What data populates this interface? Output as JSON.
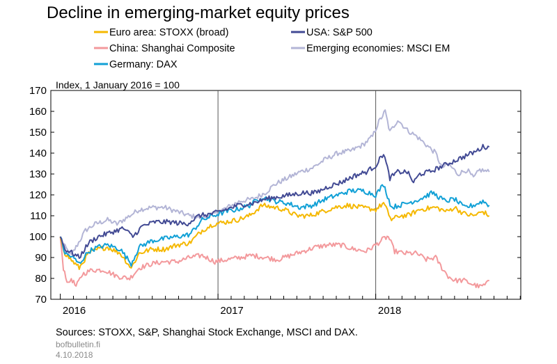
{
  "chart_data": {
    "type": "line",
    "title": "Decline in emerging-market equity prices",
    "subtitle": "Index, 1 January 2016 = 100",
    "xlabel": "",
    "ylabel": "",
    "ylim": [
      70,
      170
    ],
    "yticks": [
      "170",
      "160",
      "150",
      "140",
      "130",
      "120",
      "110",
      "100",
      "90",
      "80",
      "70"
    ],
    "xticks": [
      "2016",
      "2017",
      "2018"
    ],
    "grid": "vertical lines at year boundaries",
    "legend_placement": "top, two columns",
    "series": [
      {
        "name": "Euro area: STOXX (broad)",
        "color": "#f5b800",
        "points": [
          [
            2016.0,
            100
          ],
          [
            2016.03,
            92
          ],
          [
            2016.08,
            88
          ],
          [
            2016.12,
            85
          ],
          [
            2016.18,
            92
          ],
          [
            2016.24,
            94
          ],
          [
            2016.3,
            95
          ],
          [
            2016.38,
            92
          ],
          [
            2016.45,
            85
          ],
          [
            2016.5,
            92
          ],
          [
            2016.58,
            94
          ],
          [
            2016.66,
            94
          ],
          [
            2016.74,
            96
          ],
          [
            2016.82,
            97
          ],
          [
            2016.9,
            103
          ],
          [
            2016.97,
            106
          ],
          [
            2017.05,
            107
          ],
          [
            2017.12,
            108
          ],
          [
            2017.2,
            110
          ],
          [
            2017.28,
            115
          ],
          [
            2017.36,
            114
          ],
          [
            2017.42,
            113
          ],
          [
            2017.5,
            110
          ],
          [
            2017.58,
            110
          ],
          [
            2017.66,
            112
          ],
          [
            2017.74,
            114
          ],
          [
            2017.82,
            115
          ],
          [
            2017.9,
            114
          ],
          [
            2018.0,
            113
          ],
          [
            2018.05,
            116
          ],
          [
            2018.1,
            108
          ],
          [
            2018.15,
            110
          ],
          [
            2018.2,
            110
          ],
          [
            2018.28,
            113
          ],
          [
            2018.38,
            114
          ],
          [
            2018.45,
            112
          ],
          [
            2018.5,
            114
          ],
          [
            2018.56,
            111
          ],
          [
            2018.62,
            110
          ],
          [
            2018.68,
            112
          ],
          [
            2018.72,
            110
          ]
        ]
      },
      {
        "name": "China: Shanghai Composite",
        "color": "#f3999c",
        "points": [
          [
            2016.0,
            100
          ],
          [
            2016.02,
            85
          ],
          [
            2016.05,
            77
          ],
          [
            2016.07,
            80
          ],
          [
            2016.1,
            76
          ],
          [
            2016.14,
            82
          ],
          [
            2016.2,
            84
          ],
          [
            2016.28,
            84
          ],
          [
            2016.36,
            81
          ],
          [
            2016.44,
            80
          ],
          [
            2016.5,
            85
          ],
          [
            2016.58,
            87
          ],
          [
            2016.66,
            88
          ],
          [
            2016.74,
            88
          ],
          [
            2016.82,
            90
          ],
          [
            2016.9,
            91
          ],
          [
            2016.98,
            88
          ],
          [
            2017.06,
            89
          ],
          [
            2017.14,
            90
          ],
          [
            2017.22,
            91
          ],
          [
            2017.3,
            90
          ],
          [
            2017.38,
            89
          ],
          [
            2017.46,
            91
          ],
          [
            2017.54,
            93
          ],
          [
            2017.62,
            95
          ],
          [
            2017.7,
            96
          ],
          [
            2017.78,
            96
          ],
          [
            2017.86,
            94
          ],
          [
            2017.94,
            93
          ],
          [
            2018.0,
            96
          ],
          [
            2018.05,
            99
          ],
          [
            2018.08,
            100
          ],
          [
            2018.12,
            93
          ],
          [
            2018.18,
            92
          ],
          [
            2018.26,
            92
          ],
          [
            2018.32,
            89
          ],
          [
            2018.38,
            90
          ],
          [
            2018.42,
            85
          ],
          [
            2018.46,
            81
          ],
          [
            2018.5,
            79
          ],
          [
            2018.56,
            79
          ],
          [
            2018.62,
            77
          ],
          [
            2018.66,
            76
          ],
          [
            2018.7,
            77
          ],
          [
            2018.72,
            79
          ]
        ]
      },
      {
        "name": "Germany: DAX",
        "color": "#11a0d6",
        "points": [
          [
            2016.0,
            100
          ],
          [
            2016.03,
            92
          ],
          [
            2016.08,
            90
          ],
          [
            2016.12,
            87
          ],
          [
            2016.18,
            93
          ],
          [
            2016.24,
            95
          ],
          [
            2016.3,
            96
          ],
          [
            2016.38,
            94
          ],
          [
            2016.45,
            87
          ],
          [
            2016.5,
            95
          ],
          [
            2016.58,
            98
          ],
          [
            2016.66,
            99
          ],
          [
            2016.74,
            100
          ],
          [
            2016.82,
            101
          ],
          [
            2016.9,
            108
          ],
          [
            2016.97,
            110
          ],
          [
            2017.05,
            112
          ],
          [
            2017.12,
            113
          ],
          [
            2017.2,
            115
          ],
          [
            2017.28,
            119
          ],
          [
            2017.36,
            117
          ],
          [
            2017.44,
            116
          ],
          [
            2017.52,
            114
          ],
          [
            2017.6,
            115
          ],
          [
            2017.68,
            118
          ],
          [
            2017.76,
            120
          ],
          [
            2017.84,
            122
          ],
          [
            2017.92,
            122
          ],
          [
            2018.0,
            120
          ],
          [
            2018.05,
            125
          ],
          [
            2018.1,
            114
          ],
          [
            2018.15,
            115
          ],
          [
            2018.2,
            116
          ],
          [
            2018.28,
            118
          ],
          [
            2018.36,
            121
          ],
          [
            2018.44,
            117
          ],
          [
            2018.5,
            118
          ],
          [
            2018.56,
            114
          ],
          [
            2018.62,
            115
          ],
          [
            2018.68,
            117
          ],
          [
            2018.72,
            115
          ]
        ]
      },
      {
        "name": "USA: S&P 500",
        "color": "#424a94",
        "points": [
          [
            2016.0,
            100
          ],
          [
            2016.03,
            94
          ],
          [
            2016.08,
            92
          ],
          [
            2016.12,
            90
          ],
          [
            2016.18,
            97
          ],
          [
            2016.24,
            100
          ],
          [
            2016.32,
            102
          ],
          [
            2016.4,
            104
          ],
          [
            2016.46,
            100
          ],
          [
            2016.52,
            105
          ],
          [
            2016.6,
            107
          ],
          [
            2016.7,
            107
          ],
          [
            2016.8,
            106
          ],
          [
            2016.88,
            110
          ],
          [
            2016.97,
            111
          ],
          [
            2017.05,
            113
          ],
          [
            2017.13,
            115
          ],
          [
            2017.22,
            116
          ],
          [
            2017.3,
            118
          ],
          [
            2017.38,
            119
          ],
          [
            2017.46,
            120
          ],
          [
            2017.54,
            121
          ],
          [
            2017.62,
            121
          ],
          [
            2017.7,
            124
          ],
          [
            2017.78,
            126
          ],
          [
            2017.86,
            129
          ],
          [
            2017.94,
            131
          ],
          [
            2018.0,
            134
          ],
          [
            2018.05,
            140
          ],
          [
            2018.09,
            128
          ],
          [
            2018.14,
            131
          ],
          [
            2018.2,
            131
          ],
          [
            2018.24,
            126
          ],
          [
            2018.28,
            130
          ],
          [
            2018.34,
            131
          ],
          [
            2018.4,
            133
          ],
          [
            2018.46,
            135
          ],
          [
            2018.52,
            137
          ],
          [
            2018.58,
            139
          ],
          [
            2018.64,
            141
          ],
          [
            2018.68,
            143
          ],
          [
            2018.72,
            143
          ]
        ]
      },
      {
        "name": "Emerging economies: MSCI EM",
        "color": "#b3b5d6",
        "points": [
          [
            2016.0,
            100
          ],
          [
            2016.03,
            95
          ],
          [
            2016.07,
            91
          ],
          [
            2016.1,
            95
          ],
          [
            2016.16,
            103
          ],
          [
            2016.22,
            106
          ],
          [
            2016.3,
            108
          ],
          [
            2016.36,
            106
          ],
          [
            2016.44,
            110
          ],
          [
            2016.5,
            113
          ],
          [
            2016.58,
            114
          ],
          [
            2016.66,
            114
          ],
          [
            2016.74,
            112
          ],
          [
            2016.82,
            110
          ],
          [
            2016.9,
            109
          ],
          [
            2016.98,
            111
          ],
          [
            2017.06,
            114
          ],
          [
            2017.14,
            117
          ],
          [
            2017.22,
            118
          ],
          [
            2017.3,
            121
          ],
          [
            2017.36,
            125
          ],
          [
            2017.44,
            128
          ],
          [
            2017.52,
            131
          ],
          [
            2017.6,
            133
          ],
          [
            2017.68,
            137
          ],
          [
            2017.76,
            140
          ],
          [
            2017.84,
            141
          ],
          [
            2017.92,
            144
          ],
          [
            2017.98,
            148
          ],
          [
            2018.02,
            155
          ],
          [
            2018.06,
            160
          ],
          [
            2018.09,
            150
          ],
          [
            2018.14,
            156
          ],
          [
            2018.2,
            151
          ],
          [
            2018.26,
            148
          ],
          [
            2018.32,
            144
          ],
          [
            2018.38,
            140
          ],
          [
            2018.42,
            133
          ],
          [
            2018.46,
            135
          ],
          [
            2018.52,
            130
          ],
          [
            2018.58,
            132
          ],
          [
            2018.62,
            128
          ],
          [
            2018.66,
            132
          ],
          [
            2018.72,
            131
          ]
        ]
      }
    ]
  },
  "sources": "Sources: STOXX, S&P, Shanghai Stock Exchange, MSCI and DAX.",
  "site": "bofbulletin.fi",
  "date": "4.10.2018"
}
